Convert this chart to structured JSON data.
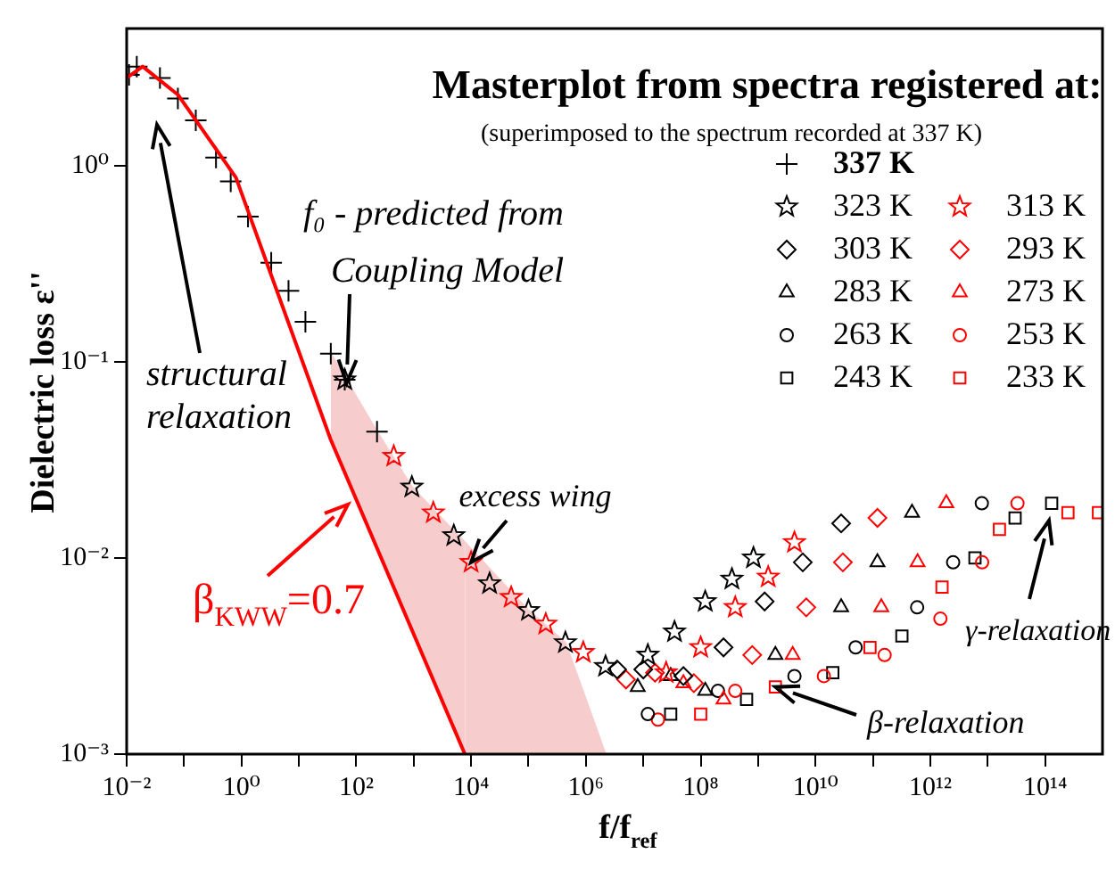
{
  "chart_data": {
    "type": "scatter",
    "title": "Masterplot from spectra registered at:",
    "subtitle": "(superimposed to the spectrum recorded at 337 K)",
    "xlabel": "f/f$_{ref}$",
    "ylabel": "Dielectric loss ε''",
    "log": "xy",
    "legend": "top right",
    "xlim": [
      0.01,
      1000000000000000.0
    ],
    "ylim": [
      0.001,
      5
    ],
    "xticks": [
      {
        "value": 0.01,
        "label": "10⁻²"
      },
      {
        "value": 0.1,
        "label": null
      },
      {
        "value": 1,
        "label": "10⁰"
      },
      {
        "value": 10,
        "label": null
      },
      {
        "value": 100,
        "label": "10²"
      },
      {
        "value": 1000,
        "label": null
      },
      {
        "value": 10000,
        "label": "10⁴"
      },
      {
        "value": 100000,
        "label": null
      },
      {
        "value": 1000000,
        "label": "10⁶"
      },
      {
        "value": 10000000.0,
        "label": null
      },
      {
        "value": 100000000.0,
        "label": "10⁸"
      },
      {
        "value": 1000000000.0,
        "label": null
      },
      {
        "value": 10000000000.0,
        "label": "10¹⁰"
      },
      {
        "value": 100000000000.0,
        "label": null
      },
      {
        "value": 1000000000000.0,
        "label": "10¹²"
      },
      {
        "value": 10000000000000.0,
        "label": null
      },
      {
        "value": 100000000000000.0,
        "label": "10¹⁴"
      }
    ],
    "yticks": [
      {
        "value": 0.001,
        "label": "10⁻³"
      },
      {
        "value": 0.01,
        "label": "10⁻²"
      },
      {
        "value": 0.1,
        "label": "10⁻¹"
      },
      {
        "value": 1,
        "label": "10⁰"
      }
    ],
    "annotations": [
      "structural\nrelaxation",
      {
        "text": "f₀ - predicted from\nCoupling Model",
        "x": 68,
        "y": 0.078
      },
      {
        "text": "excess wing",
        "x": 10000,
        "y": 0.0095
      },
      "β$_{KWW}$=0.7",
      "γ-relaxation",
      {
        "text": "β-relaxation",
        "x": 2000000000,
        "y": 0.0022
      }
    ],
    "series": [
      {
        "type": "area",
        "color": "#f6cccc",
        "x": [
          7800,
          100000,
          440000,
          2200000
        ],
        "values": [
          0.012,
          0.0054,
          0.0037,
          0.001
        ]
      },
      {
        "type": "line",
        "color": "#ff0000",
        "x": [
          0.01,
          0.019,
          0.078,
          0.8,
          36,
          7800
        ],
        "values": [
          2.8,
          3.2,
          2.3,
          0.87,
          0.04,
          0.001
        ]
      },
      {
        "type": "area",
        "color": "#f6cccc",
        "x": [
          36,
          230,
          930,
          7800
        ],
        "values": [
          0.11,
          0.044,
          0.023,
          0.012
        ]
      },
      {
        "name": "337 K",
        "color": "#000000",
        "marker": "cross",
        "x": [
          0.011,
          0.015,
          0.038,
          0.078,
          0.16,
          0.36,
          0.65,
          1.3,
          3.3,
          6.6,
          13,
          36,
          63,
          230
        ],
        "values": [
          2.9,
          3.2,
          2.8,
          2.2,
          1.7,
          1.1,
          0.83,
          0.55,
          0.32,
          0.23,
          0.16,
          0.11,
          0.081,
          0.044
        ]
      },
      {
        "name": "323 K",
        "color": "#000000",
        "marker": "star",
        "x": [
          63,
          930,
          5000,
          21000,
          100000,
          440000,
          2200000,
          12000000,
          35000000,
          120000000,
          350000000,
          830000000
        ],
        "values": [
          0.081,
          0.023,
          0.013,
          0.0074,
          0.0054,
          0.0037,
          0.0028,
          0.0032,
          0.0042,
          0.006,
          0.0078,
          0.01
        ]
      },
      {
        "name": "313 K",
        "color": "#ff0000",
        "marker": "star",
        "x": [
          450,
          2200,
          10000,
          50000,
          200000,
          900000,
          25000000,
          100000000,
          400000000,
          1500000000,
          4300000000
        ],
        "values": [
          0.033,
          0.017,
          0.0095,
          0.0063,
          0.0046,
          0.0033,
          0.0026,
          0.0035,
          0.0056,
          0.008,
          0.012
        ]
      },
      {
        "name": "303 K",
        "color": "#000000",
        "marker": "diamond",
        "x": [
          3500000,
          10000000,
          50000000,
          250000000,
          1300000000,
          6000000000,
          28000000000
        ],
        "values": [
          0.0027,
          0.0027,
          0.0025,
          0.0035,
          0.006,
          0.0095,
          0.015
        ]
      },
      {
        "name": "293 K",
        "color": "#ff0000",
        "marker": "diamond",
        "x": [
          5000000,
          16000000,
          76000000,
          790000000,
          6900000000,
          30000000000,
          120000000000
        ],
        "values": [
          0.0024,
          0.0026,
          0.0023,
          0.0032,
          0.0056,
          0.0095,
          0.016
        ]
      },
      {
        "name": "283 K",
        "color": "#000000",
        "marker": "triangle",
        "x": [
          8000000,
          30000000,
          120000000,
          2000000000,
          28000000000,
          120000000000,
          480000000000
        ],
        "values": [
          0.0022,
          0.0025,
          0.0021,
          0.0032,
          0.0056,
          0.0095,
          0.017
        ]
      },
      {
        "name": "273 K",
        "color": "#ff0000",
        "marker": "triangle",
        "x": [
          50000000,
          250000000,
          4000000000,
          140000000000,
          600000000000,
          1900000000000
        ],
        "values": [
          0.0023,
          0.0019,
          0.0032,
          0.0056,
          0.0095,
          0.019
        ]
      },
      {
        "name": "263 K",
        "color": "#000000",
        "marker": "circle",
        "x": [
          12000000,
          200000000,
          4300000000,
          50000000000,
          590000000000,
          2500000000000,
          7900000000000
        ],
        "values": [
          0.0016,
          0.0021,
          0.0025,
          0.0035,
          0.0056,
          0.0095,
          0.019
        ]
      },
      {
        "name": "253 K",
        "color": "#ff0000",
        "marker": "circle",
        "x": [
          18000000,
          400000000,
          14000000000,
          160000000000,
          1500000000000,
          8000000000000,
          33000000000000
        ],
        "values": [
          0.0015,
          0.0021,
          0.0025,
          0.0032,
          0.0049,
          0.0095,
          0.019
        ]
      },
      {
        "name": "243 K",
        "color": "#000000",
        "marker": "square",
        "x": [
          30000000,
          630000000,
          20000000000,
          320000000000,
          6000000000000,
          30000000000000,
          130000000000000
        ],
        "values": [
          0.0016,
          0.0019,
          0.0026,
          0.004,
          0.01,
          0.016,
          0.019
        ]
      },
      {
        "name": "233 K",
        "color": "#ff0000",
        "marker": "square",
        "x": [
          100000000,
          2000000000,
          89000000000,
          1600000000000,
          16000000000000,
          250000000000000,
          850000000000000
        ],
        "values": [
          0.0016,
          0.0022,
          0.0035,
          0.0071,
          0.014,
          0.017,
          0.017
        ]
      }
    ]
  }
}
